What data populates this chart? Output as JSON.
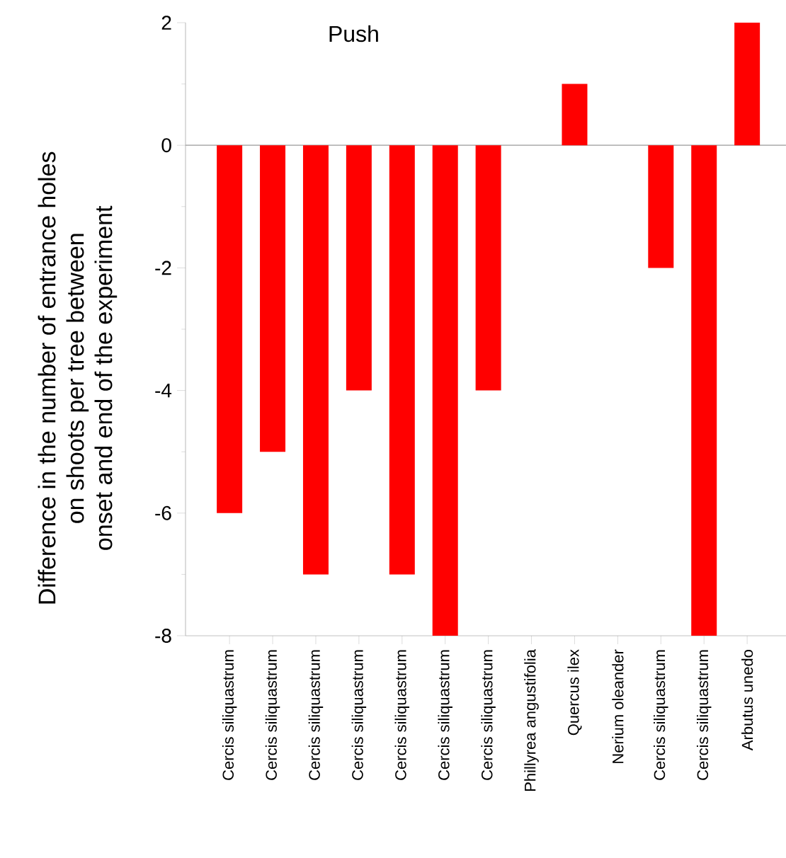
{
  "chart_data": {
    "type": "bar",
    "title": "Push",
    "ylabel": "Difference in the number of entrance holes\non shoots per tree between\nonset and end of the experiment",
    "categories": [
      "Cercis siliquastrum",
      "Cercis siliquastrum",
      "Cercis siliquastrum",
      "Cercis siliquastrum",
      "Cercis siliquastrum",
      "Cercis siliquastrum",
      "Cercis siliquastrum",
      "Phillyrea angustifolia",
      "Quercus ilex",
      "Nerium oleander",
      "Cercis siliquastrum",
      "Cercis siliquastrum",
      "Arbutus unedo"
    ],
    "values": [
      -6,
      -5,
      -7,
      -4,
      -7,
      -8,
      -4,
      0,
      1,
      0,
      -2,
      -8,
      2
    ],
    "color": "#ff0000",
    "ylim": [
      -8,
      2
    ],
    "yticks": [
      -8,
      -6,
      -4,
      -2,
      0,
      2
    ],
    "grid": false,
    "ref_lines": [
      {
        "axis": "y",
        "value": 0,
        "color": "#999999"
      }
    ]
  }
}
